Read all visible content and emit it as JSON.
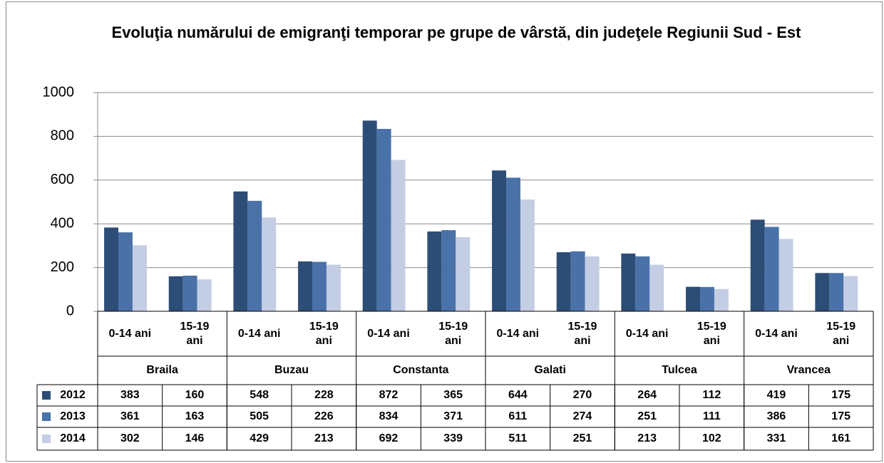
{
  "chart_data": {
    "type": "bar",
    "title": "Evoluţia numărului de emigranţi temporar pe grupe de vârstă, din judeţele Regiunii Sud - Est",
    "groups": [
      "Braila",
      "Buzau",
      "Constanta",
      "Galati",
      "Tulcea",
      "Vrancea"
    ],
    "categories": [
      "0-14 ani",
      "15-19 ani",
      "0-14 ani",
      "15-19 ani",
      "0-14 ani",
      "15-19 ani",
      "0-14 ani",
      "15-19 ani",
      "0-14 ani",
      "15-19 ani",
      "0-14 ani",
      "15-19 ani"
    ],
    "series": [
      {
        "name": "2012",
        "color": "#2c4d75",
        "values": [
          383,
          160,
          548,
          228,
          872,
          365,
          644,
          270,
          264,
          112,
          419,
          175
        ]
      },
      {
        "name": "2013",
        "color": "#4a72a8",
        "values": [
          361,
          163,
          505,
          226,
          834,
          371,
          611,
          274,
          251,
          111,
          386,
          175
        ]
      },
      {
        "name": "2014",
        "color": "#c3cde4",
        "values": [
          302,
          146,
          429,
          213,
          692,
          339,
          511,
          251,
          213,
          102,
          331,
          161
        ]
      }
    ],
    "ylim": [
      0,
      1000
    ],
    "yticks": [
      0,
      200,
      400,
      600,
      800,
      1000
    ],
    "grid": true
  }
}
